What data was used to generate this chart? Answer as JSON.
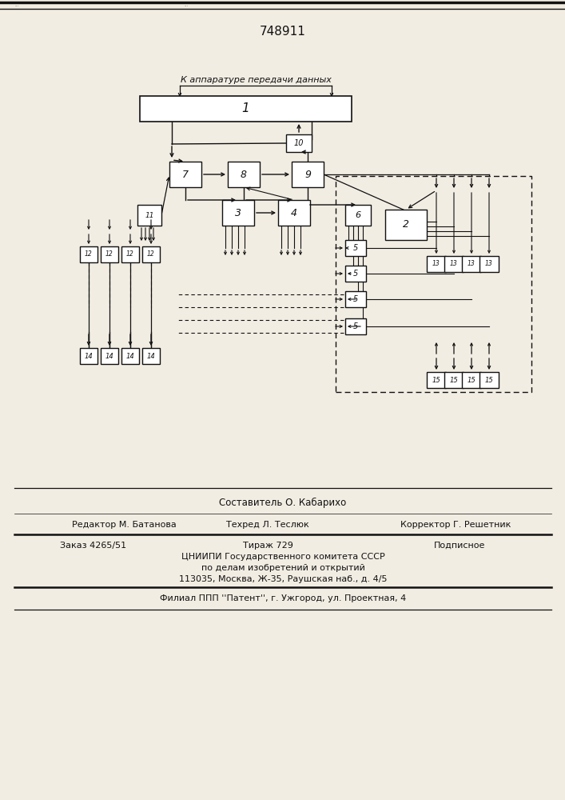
{
  "title": "748911",
  "label_top": "К аппаратуре передачи данных",
  "bg_color": "#f2ede3",
  "line_color": "#111111",
  "box_color": "#ffffff",
  "footer_line1": "Составитель О. Кабарихо",
  "footer_editor": "Редактор М. Батанова",
  "footer_techred": "Техред Л. Теслюк",
  "footer_corrector": "Корректор Г. Решетник",
  "footer_order": "Заказ 4265/51",
  "footer_tirazh": "Тираж 729",
  "footer_podp": "Подписное",
  "footer_cniip1": "ЦНИИПИ Государственного комитета СССР",
  "footer_cniip2": "по делам изобретений и открытий",
  "footer_cniip3": "113035, Москва, Ж-35, Раушская наб., д. 4/5",
  "footer_filial": "Филиал ППП ''Патент'', г. Ужгород, ул. Проектная, 4"
}
